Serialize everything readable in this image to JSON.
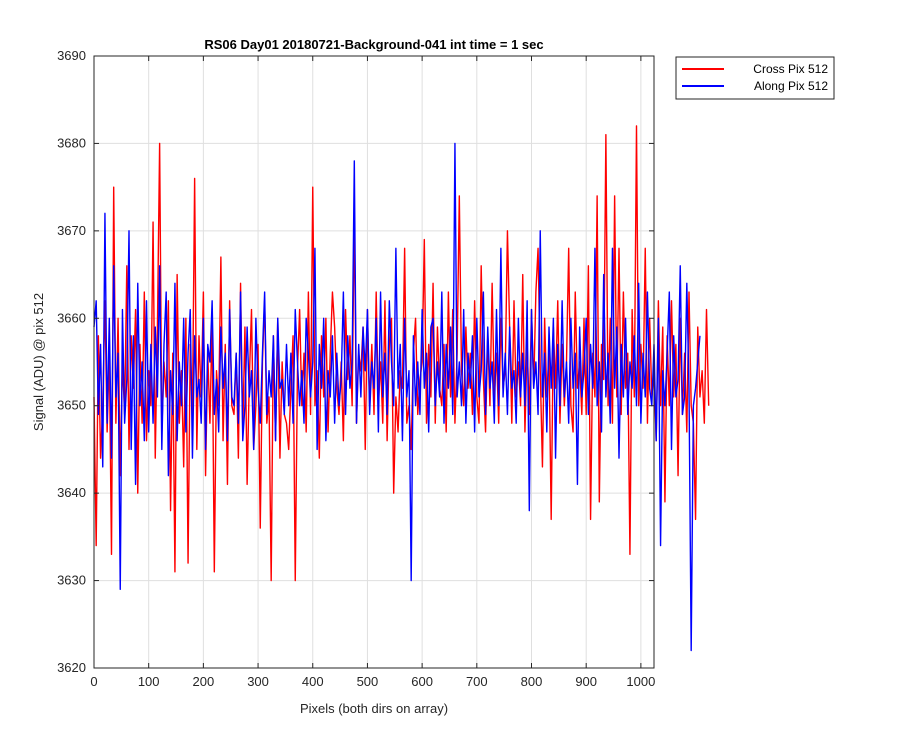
{
  "chart_data": {
    "type": "line",
    "title": "RS06 Day01 20180721-Background-041 int time = 1 sec",
    "xlabel": "Pixels (both dirs on array)",
    "ylabel": "Signal (ADU) @ pix 512",
    "xlim": [
      0,
      1024
    ],
    "ylim": [
      3620,
      3690
    ],
    "xticks": [
      0,
      100,
      200,
      300,
      400,
      500,
      600,
      700,
      800,
      900,
      1000
    ],
    "yticks": [
      3620,
      3630,
      3640,
      3650,
      3660,
      3670,
      3680,
      3690
    ],
    "grid": true,
    "legend_placement": "outside-top-right",
    "x_step": 4,
    "series": [
      {
        "name": "Cross Pix 512",
        "color": "#ff0000",
        "values": [
          3651,
          3634,
          3658,
          3644,
          3650,
          3662,
          3647,
          3656,
          3633,
          3675,
          3648,
          3660,
          3642,
          3655,
          3649,
          3666,
          3645,
          3658,
          3652,
          3661,
          3640,
          3657,
          3648,
          3663,
          3646,
          3654,
          3650,
          3671,
          3644,
          3659,
          3680,
          3647,
          3655,
          3651,
          3662,
          3638,
          3656,
          3631,
          3665,
          3648,
          3654,
          3643,
          3660,
          3632,
          3657,
          3649,
          3676,
          3645,
          3658,
          3651,
          3663,
          3642,
          3656,
          3648,
          3660,
          3631,
          3654,
          3650,
          3667,
          3646,
          3657,
          3641,
          3662,
          3650,
          3649,
          3656,
          3644,
          3664,
          3647,
          3659,
          3641,
          3653,
          3661,
          3645,
          3650,
          3657,
          3636,
          3655,
          3662,
          3648,
          3651,
          3630,
          3658,
          3646,
          3660,
          3644,
          3655,
          3649,
          3648,
          3645,
          3652,
          3658,
          3630,
          3654,
          3661,
          3650,
          3656,
          3647,
          3663,
          3649,
          3675,
          3650,
          3654,
          3644,
          3658,
          3651,
          3660,
          3647,
          3656,
          3663,
          3659,
          3652,
          3649,
          3655,
          3646,
          3661,
          3653,
          3658,
          3650,
          3672,
          3648,
          3656,
          3654,
          3659,
          3645,
          3661,
          3650,
          3657,
          3649,
          3663,
          3650,
          3655,
          3648,
          3662,
          3646,
          3657,
          3660,
          3640,
          3651,
          3647,
          3654,
          3652,
          3668,
          3648,
          3650,
          3645,
          3656,
          3660,
          3649,
          3653,
          3655,
          3669,
          3648,
          3657,
          3651,
          3664,
          3648,
          3659,
          3652,
          3650,
          3657,
          3647,
          3663,
          3651,
          3661,
          3648,
          3656,
          3674,
          3654,
          3650,
          3659,
          3652,
          3656,
          3649,
          3662,
          3651,
          3648,
          3666,
          3653,
          3647,
          3658,
          3650,
          3664,
          3651,
          3656,
          3648,
          3660,
          3652,
          3654,
          3670,
          3659,
          3648,
          3662,
          3651,
          3655,
          3650,
          3665,
          3647,
          3657,
          3649,
          3661,
          3652,
          3663,
          3668,
          3654,
          3643,
          3660,
          3651,
          3656,
          3637,
          3659,
          3652,
          3662,
          3648,
          3657,
          3650,
          3655,
          3668,
          3650,
          3647,
          3663,
          3652,
          3655,
          3649,
          3660,
          3649,
          3666,
          3637,
          3656,
          3651,
          3674,
          3639,
          3657,
          3653,
          3681,
          3650,
          3660,
          3648,
          3674,
          3651,
          3668,
          3649,
          3663,
          3652,
          3656,
          3633,
          3661,
          3651,
          3682,
          3650,
          3657,
          3652,
          3668,
          3648,
          3660,
          3651,
          3654,
          3646,
          3662,
          3650,
          3659,
          3639,
          3658,
          3650,
          3662,
          3651,
          3657,
          3642,
          3660,
          3649,
          3656,
          3647,
          3663,
          3650,
          3648,
          3637,
          3659,
          3651,
          3654,
          3648,
          3661,
          3650
        ]
      },
      {
        "name": "Along Pix 512",
        "color": "#0000ff",
        "values": [
          3659,
          3662,
          3649,
          3657,
          3643,
          3672,
          3648,
          3660,
          3644,
          3666,
          3651,
          3656,
          3629,
          3661,
          3648,
          3653,
          3670,
          3645,
          3658,
          3641,
          3664,
          3650,
          3655,
          3646,
          3662,
          3647,
          3657,
          3648,
          3659,
          3651,
          3666,
          3645,
          3657,
          3663,
          3642,
          3654,
          3649,
          3664,
          3646,
          3655,
          3650,
          3660,
          3647,
          3656,
          3661,
          3644,
          3658,
          3651,
          3653,
          3648,
          3660,
          3645,
          3657,
          3655,
          3662,
          3649,
          3653,
          3647,
          3659,
          3652,
          3656,
          3646,
          3661,
          3651,
          3650,
          3656,
          3648,
          3663,
          3646,
          3650,
          3659,
          3651,
          3654,
          3645,
          3660,
          3652,
          3648,
          3656,
          3663,
          3649,
          3654,
          3651,
          3658,
          3646,
          3660,
          3652,
          3653,
          3649,
          3657,
          3650,
          3656,
          3648,
          3661,
          3655,
          3650,
          3654,
          3648,
          3660,
          3656,
          3651,
          3655,
          3668,
          3645,
          3657,
          3652,
          3660,
          3646,
          3654,
          3651,
          3658,
          3648,
          3656,
          3650,
          3653,
          3663,
          3649,
          3658,
          3652,
          3655,
          3678,
          3648,
          3657,
          3651,
          3659,
          3654,
          3661,
          3649,
          3655,
          3652,
          3660,
          3647,
          3663,
          3651,
          3656,
          3649,
          3662,
          3655,
          3650,
          3668,
          3652,
          3657,
          3646,
          3660,
          3651,
          3654,
          3630,
          3658,
          3650,
          3655,
          3649,
          3661,
          3652,
          3656,
          3647,
          3659,
          3660,
          3650,
          3655,
          3651,
          3663,
          3648,
          3657,
          3652,
          3659,
          3649,
          3680,
          3651,
          3655,
          3650,
          3661,
          3648,
          3656,
          3652,
          3658,
          3647,
          3660,
          3651,
          3654,
          3663,
          3649,
          3659,
          3652,
          3655,
          3648,
          3661,
          3650,
          3668,
          3651,
          3656,
          3649,
          3659,
          3652,
          3654,
          3648,
          3660,
          3651,
          3656,
          3650,
          3662,
          3638,
          3661,
          3652,
          3655,
          3649,
          3670,
          3651,
          3656,
          3647,
          3659,
          3652,
          3660,
          3644,
          3657,
          3650,
          3662,
          3651,
          3655,
          3648,
          3660,
          3652,
          3656,
          3641,
          3659,
          3651,
          3654,
          3660,
          3649,
          3657,
          3652,
          3668,
          3650,
          3655,
          3647,
          3665,
          3651,
          3656,
          3648,
          3668,
          3652,
          3659,
          3644,
          3657,
          3651,
          3660,
          3649,
          3655,
          3652,
          3658,
          3650,
          3664,
          3648,
          3656,
          3651,
          3663,
          3652,
          3650,
          3657,
          3646,
          3660,
          3634,
          3654,
          3650,
          3656,
          3663,
          3645,
          3658,
          3651,
          3653,
          3666,
          3649,
          3651,
          3664,
          3652,
          3622,
          3650,
          3652,
          3655,
          3658
        ]
      }
    ]
  }
}
